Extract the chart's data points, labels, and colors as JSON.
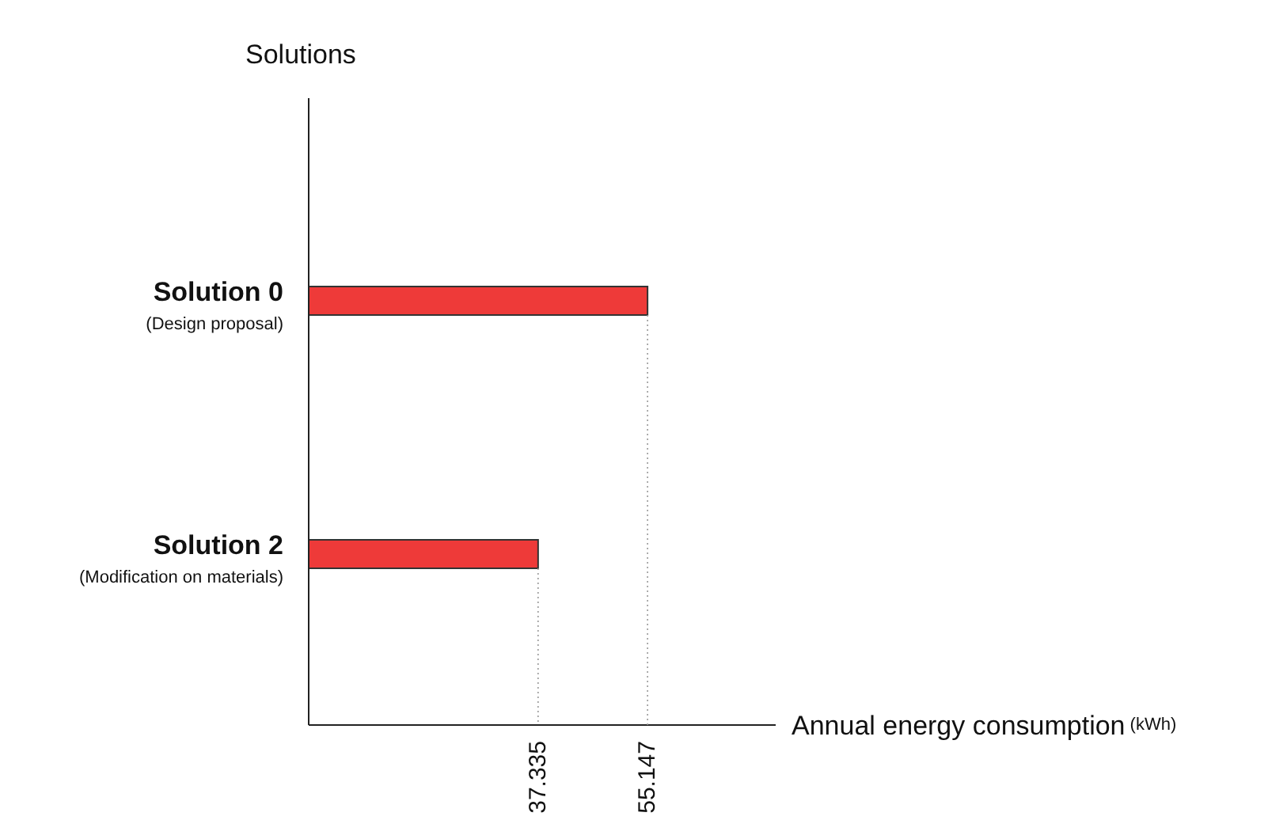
{
  "chart_data": {
    "type": "bar",
    "orientation": "horizontal",
    "xlabel": "Annual energy consumption (kWh)",
    "annotations": [
      "Solutions"
    ],
    "categories": [
      "Solution 0\n(Design proposal)",
      "Solution 2\n(Modification on materials)"
    ],
    "values": [
      55.147,
      37.335
    ],
    "color": "#ee3a39",
    "xlim": [
      0,
      76
    ],
    "xticks": [
      37.335,
      55.147
    ]
  }
}
